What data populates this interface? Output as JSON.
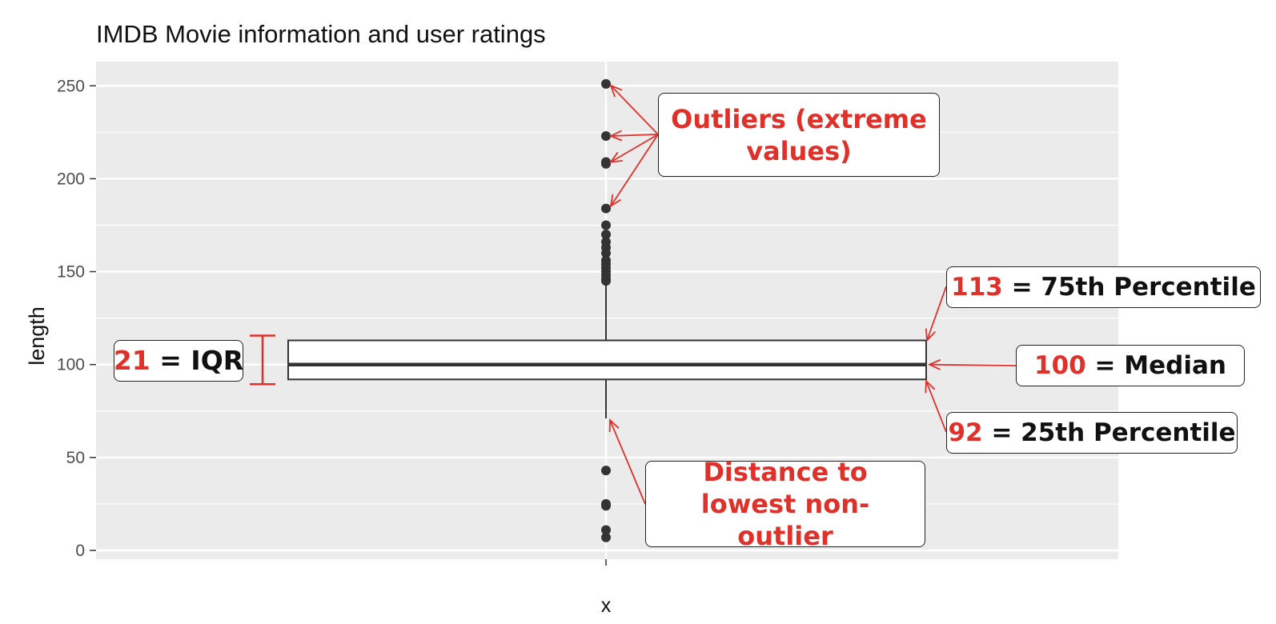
{
  "chart_data": {
    "type": "box",
    "title": "IMDB Movie information and user ratings",
    "xlabel": "",
    "ylabel": "length",
    "categories": [
      "x"
    ],
    "ylim": [
      -3,
      255
    ],
    "y_ticks": [
      0,
      50,
      100,
      150,
      200,
      250
    ],
    "grid": true,
    "box": {
      "q1": 92,
      "median": 100,
      "q3": 113,
      "whisker_low": 71,
      "whisker_high": 145
    },
    "outliers": [
      251,
      223,
      209,
      208,
      184,
      175,
      170,
      166,
      163,
      160,
      156,
      154,
      152,
      150,
      148,
      146,
      145,
      43,
      25,
      24,
      11,
      7
    ]
  },
  "annotations": {
    "outliers_label": "Outliers (extreme values)",
    "iqr": {
      "value": "21",
      "text": " = IQR"
    },
    "q3": {
      "value": "113",
      "text": " = 75th Percentile"
    },
    "median": {
      "value": "100",
      "text": " = Median"
    },
    "q1": {
      "value": "92",
      "text": " = 25th Percentile"
    },
    "lowest": "Distance to lowest non-outlier"
  },
  "colors": {
    "panel": "#ebebeb",
    "grid": "#ffffff",
    "annotation_red": "#e0302a",
    "point": "#333333"
  }
}
